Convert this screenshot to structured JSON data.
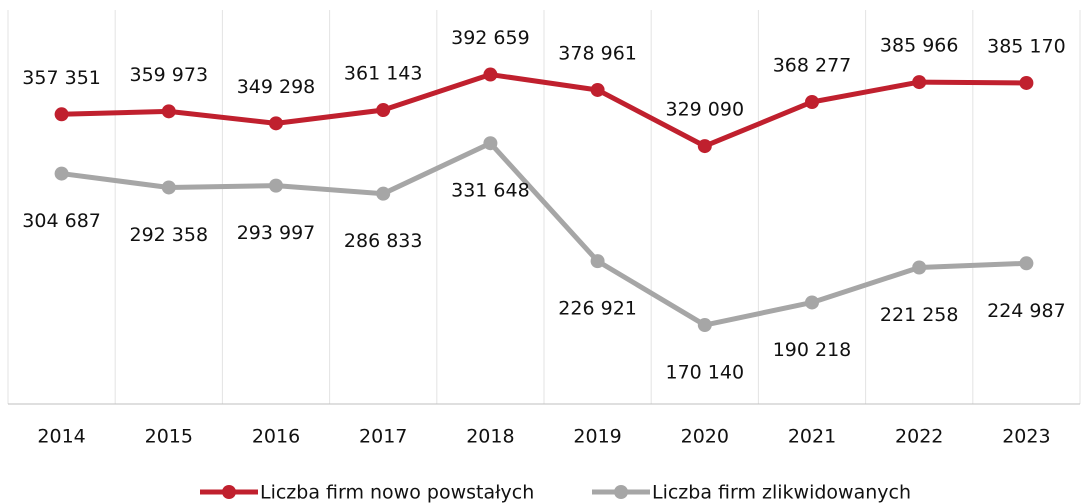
{
  "chart_data": {
    "type": "line",
    "categories": [
      "2014",
      "2015",
      "2016",
      "2017",
      "2018",
      "2019",
      "2020",
      "2021",
      "2022",
      "2023"
    ],
    "series": [
      {
        "name": "Liczba firm nowo powstałych",
        "color": "#c0202e",
        "values": [
          357351,
          359973,
          349298,
          361143,
          392659,
          378961,
          329090,
          368277,
          385966,
          385170
        ],
        "value_labels": [
          "357 351",
          "359 973",
          "349 298",
          "361 143",
          "392 659",
          "378 961",
          "329 090",
          "368 277",
          "385 966",
          "385 170"
        ]
      },
      {
        "name": "Liczba firm zlikwidowanych",
        "color": "#a6a6a6",
        "values": [
          304687,
          292358,
          293997,
          286833,
          331648,
          226921,
          170140,
          190218,
          221258,
          224987
        ],
        "value_labels": [
          "304 687",
          "292 358",
          "293 997",
          "286 833",
          "331 648",
          "226 921",
          "170 140",
          "190 218",
          "221 258",
          "224 987"
        ]
      }
    ],
    "ylim": [
      100000,
      450000
    ],
    "legend": "bottom"
  }
}
